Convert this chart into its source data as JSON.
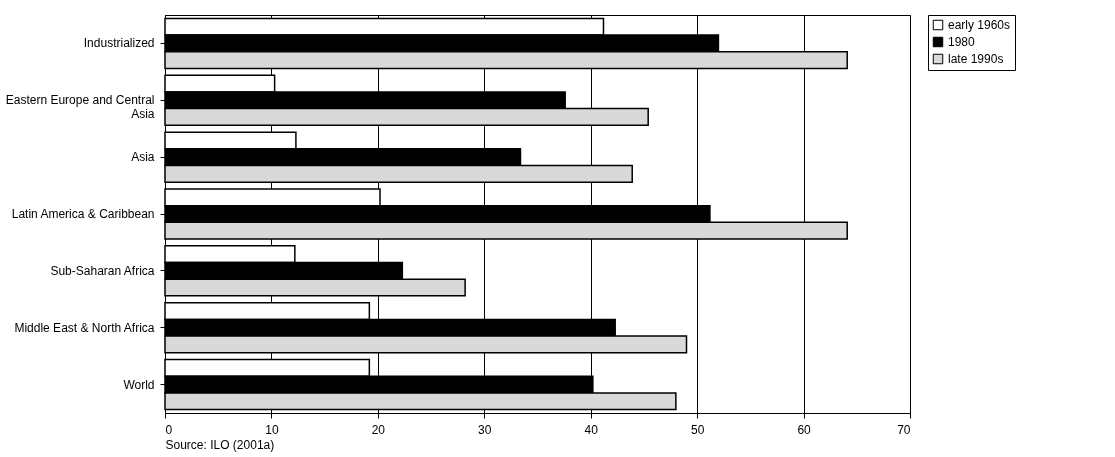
{
  "chart_data": {
    "type": "bar",
    "orientation": "horizontal",
    "categories": [
      "Industrialized",
      "Eastern Europe and Central Asia",
      "Asia",
      "Latin America & Caribbean",
      "Sub-Saharan Africa",
      "Middle East & North Africa",
      "World"
    ],
    "series": [
      {
        "name": "early 1960s",
        "color": "#ffffff",
        "values": [
          41.2,
          10.3,
          12.3,
          20.2,
          12.2,
          19.2,
          19.2
        ]
      },
      {
        "name": "1980",
        "color": "#000000",
        "values": [
          52.0,
          37.6,
          33.4,
          51.2,
          22.3,
          42.3,
          40.2
        ]
      },
      {
        "name": "late 1990s",
        "color": "#d9d9d9",
        "values": [
          64.1,
          45.4,
          43.9,
          64.1,
          28.2,
          49.0,
          48.0
        ]
      }
    ],
    "xlim": [
      0,
      70
    ],
    "xticks": [
      0,
      10,
      20,
      30,
      40,
      50,
      60,
      70
    ],
    "grid": "x",
    "legend": "right",
    "annotations": [
      "Source: ILO (2001a)"
    ]
  }
}
